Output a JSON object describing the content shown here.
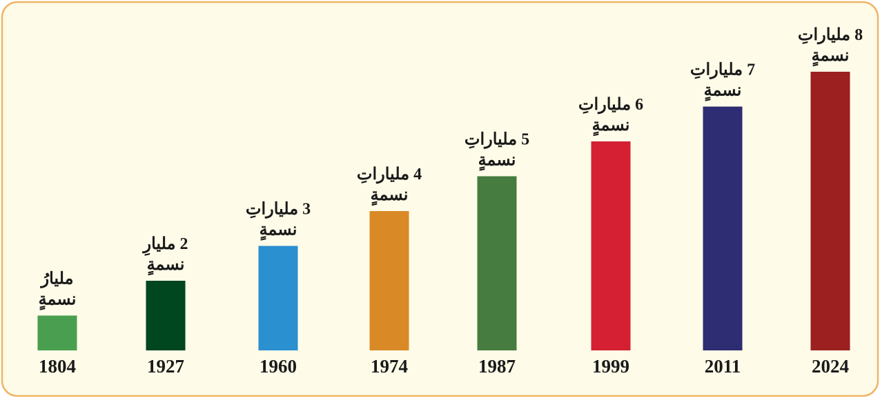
{
  "chart_data": {
    "type": "bar",
    "categories": [
      "1804",
      "1927",
      "1960",
      "1974",
      "1987",
      "1999",
      "2011",
      "2024"
    ],
    "values": [
      1,
      2,
      3,
      4,
      5,
      6,
      7,
      8
    ],
    "value_labels": [
      [
        "مليارُ",
        "نسمةٍ"
      ],
      [
        "2 مليارِ",
        "نسمةٍ"
      ],
      [
        "3 ملياراتِ",
        "نسمةٍ"
      ],
      [
        "4 ملياراتِ",
        "نسمةٍ"
      ],
      [
        "5 ملياراتِ",
        "نسمةٍ"
      ],
      [
        "6 ملياراتِ",
        "نسمةٍ"
      ],
      [
        "7 ملياراتِ",
        "نسمةٍ"
      ],
      [
        "8 ملياراتِ",
        "نسمةٍ"
      ]
    ],
    "colors": [
      "#4a9e50",
      "#00461e",
      "#2a90d0",
      "#d98a26",
      "#467c40",
      "#d42032",
      "#2e2c72",
      "#9c2020"
    ]
  }
}
